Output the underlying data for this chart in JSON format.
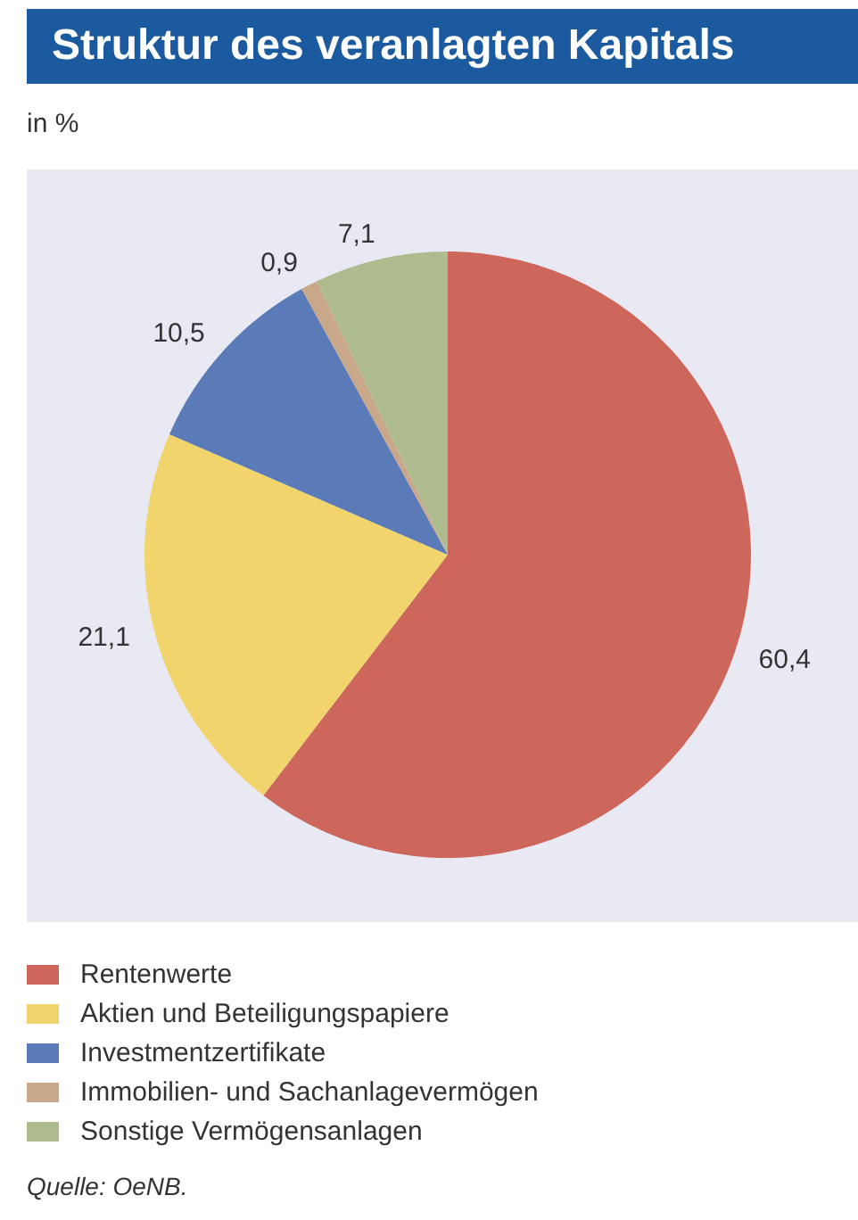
{
  "chart_data": {
    "type": "pie",
    "title": "Struktur des veranlagten Kapitals",
    "subtitle": "in %",
    "categories": [
      "Rentenwerte",
      "Aktien und Beteiligungspapiere",
      "Investmentzertifikate",
      "Immobilien- und Sachanlagevermögen",
      "Sonstige Vermögensanlagen"
    ],
    "values": [
      60.4,
      21.1,
      10.5,
      0.9,
      7.1
    ],
    "colors": [
      "#cd675c",
      "#f2d46c",
      "#5a7bb8",
      "#c9a88a",
      "#adbb8f"
    ],
    "value_labels": [
      "60,4",
      "21,1",
      "10,5",
      "0,9",
      "7,1"
    ],
    "legend": "bottom",
    "annotations": [
      "Quelle: OeNB."
    ]
  }
}
